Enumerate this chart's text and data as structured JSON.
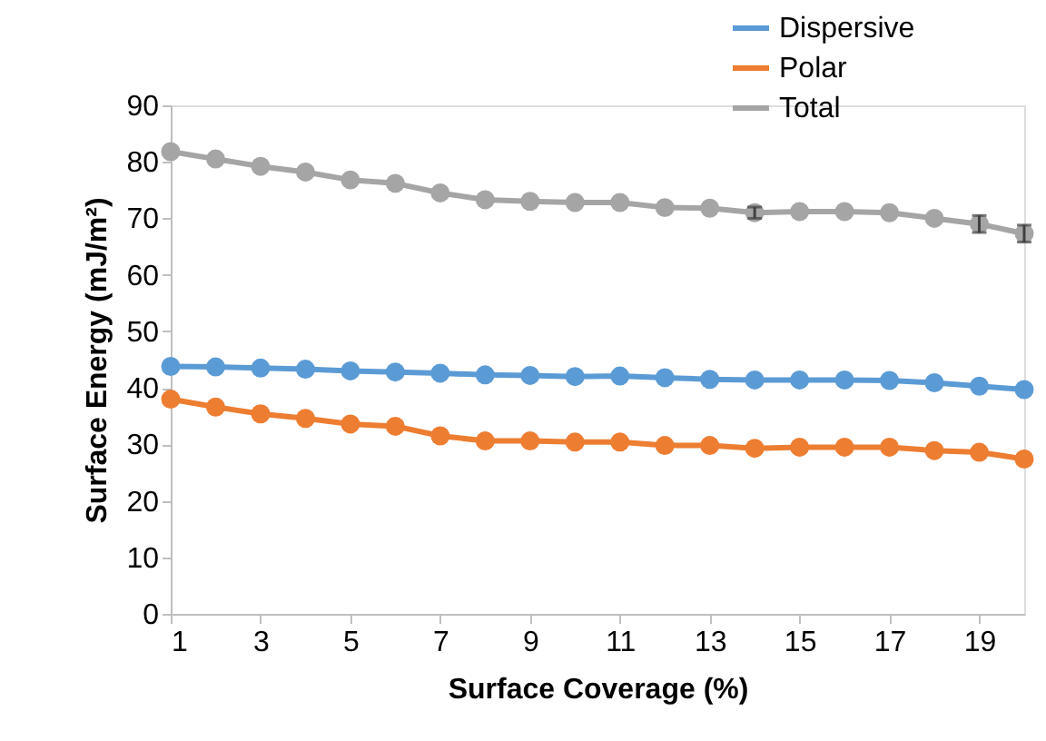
{
  "chart_data": {
    "type": "line",
    "xlabel": "Surface Coverage (%)",
    "ylabel": "Surface Energy (mJ/m²)",
    "x": [
      1,
      2,
      3,
      4,
      5,
      6,
      7,
      8,
      9,
      10,
      11,
      12,
      13,
      14,
      15,
      16,
      17,
      18,
      19,
      20
    ],
    "xlim": [
      1,
      20
    ],
    "xticks": [
      1,
      3,
      5,
      7,
      9,
      11,
      13,
      15,
      17,
      19
    ],
    "ylim": [
      0,
      90
    ],
    "yticks": [
      0,
      10,
      20,
      30,
      40,
      50,
      60,
      70,
      80,
      90
    ],
    "grid": false,
    "legend": "top right",
    "marker": "circle",
    "line_style": "solid",
    "series": [
      {
        "name": "Dispersive",
        "color": "#5b9bd5",
        "values": [
          43.8,
          43.7,
          43.5,
          43.3,
          43.0,
          42.8,
          42.6,
          42.3,
          42.2,
          42.0,
          42.1,
          41.8,
          41.5,
          41.4,
          41.4,
          41.4,
          41.3,
          40.9,
          40.3,
          39.7
        ]
      },
      {
        "name": "Polar",
        "color": "#ed7d31",
        "values": [
          38.0,
          36.6,
          35.4,
          34.6,
          33.6,
          33.2,
          31.5,
          30.6,
          30.6,
          30.4,
          30.4,
          29.8,
          29.8,
          29.3,
          29.5,
          29.5,
          29.5,
          28.9,
          28.6,
          27.4
        ]
      },
      {
        "name": "Total",
        "color": "#a5a5a5",
        "values": [
          81.8,
          80.5,
          79.2,
          78.2,
          76.8,
          76.2,
          74.5,
          73.3,
          73.0,
          72.8,
          72.8,
          71.9,
          71.8,
          71.0,
          71.2,
          71.2,
          71.0,
          70.0,
          69.0,
          67.3
        ],
        "errors": [
          null,
          null,
          null,
          null,
          null,
          null,
          null,
          null,
          null,
          null,
          null,
          null,
          null,
          1,
          null,
          null,
          null,
          null,
          1.5,
          1.5
        ]
      }
    ]
  }
}
